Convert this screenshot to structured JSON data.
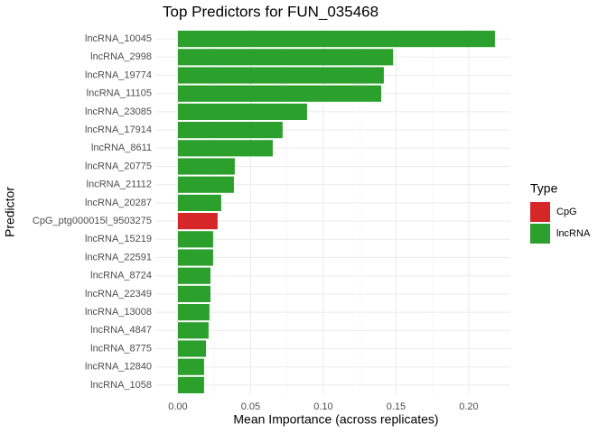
{
  "chart_data": {
    "type": "bar",
    "orientation": "horizontal",
    "title": "Top Predictors for FUN_035468",
    "x_label": "Mean Importance (across replicates)",
    "y_label": "Predictor",
    "legend_title": "Type",
    "categories": [
      "lncRNA_10045",
      "lncRNA_2998",
      "lncRNA_19774",
      "lncRNA_11105",
      "lncRNA_23085",
      "lncRNA_17914",
      "lncRNA_8611",
      "lncRNA_20775",
      "lncRNA_21112",
      "lncRNA_20287",
      "CpG_ptg000015l_9503275",
      "lncRNA_15219",
      "lncRNA_22591",
      "lncRNA_8724",
      "lncRNA_22349",
      "lncRNA_13008",
      "lncRNA_4847",
      "lncRNA_8775",
      "lncRNA_12840",
      "lncRNA_1058"
    ],
    "series": [
      {
        "name": "CpG",
        "color": "#d62728",
        "values": [
          null,
          null,
          null,
          null,
          null,
          null,
          null,
          null,
          null,
          null,
          0.0273,
          null,
          null,
          null,
          null,
          null,
          null,
          null,
          null,
          null
        ]
      },
      {
        "name": "lncRNA",
        "color": "#2ca02c",
        "values": [
          0.218,
          0.148,
          0.1416,
          0.1398,
          0.0888,
          0.072,
          0.0652,
          0.0391,
          0.0385,
          0.0298,
          null,
          0.0242,
          0.0242,
          0.0224,
          0.0224,
          0.0217,
          0.0211,
          0.0193,
          0.018,
          0.018
        ]
      }
    ],
    "xlim": [
      -0.0155,
      0.2286
    ],
    "xticks": [
      {
        "value": 0,
        "label": "0.00"
      },
      0.05,
      {
        "value": 0.1,
        "label": "0.10"
      },
      0.15,
      {
        "value": 0.2,
        "label": "0.20"
      }
    ],
    "grid": true
  }
}
